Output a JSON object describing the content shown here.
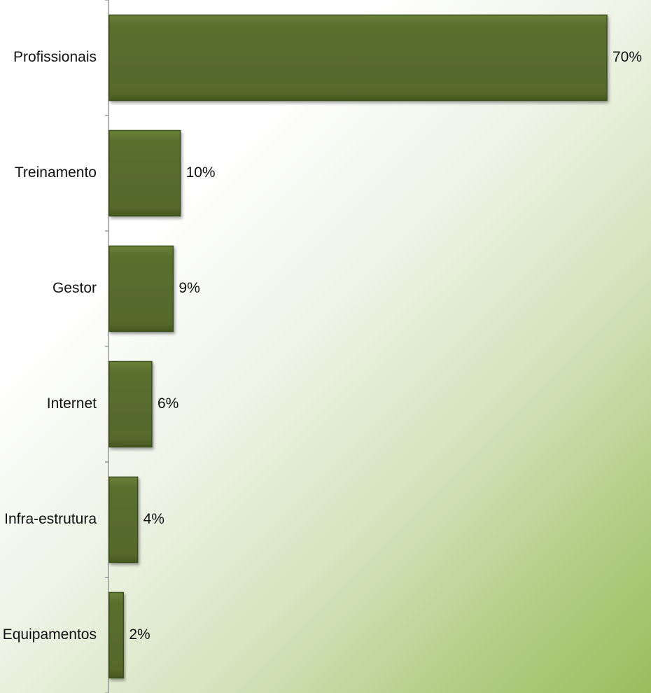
{
  "chart_data": {
    "type": "bar",
    "orientation": "horizontal",
    "categories": [
      "Profissionais",
      "Treinamento",
      "Gestor",
      "Internet",
      "Infra-estrutura",
      "Equipamentos"
    ],
    "values": [
      70,
      10,
      9,
      6,
      4,
      2
    ],
    "value_labels": [
      "70%",
      "10%",
      "9%",
      "6%",
      "4%",
      "2%"
    ],
    "title": "",
    "xlabel": "",
    "ylabel": "",
    "xlim": [
      0,
      70
    ],
    "grid": false,
    "legend": "none",
    "colors": {
      "bar": "#5a6e2f",
      "bar_border": "#3b4f1b",
      "axis": "#8c8c8c"
    }
  }
}
